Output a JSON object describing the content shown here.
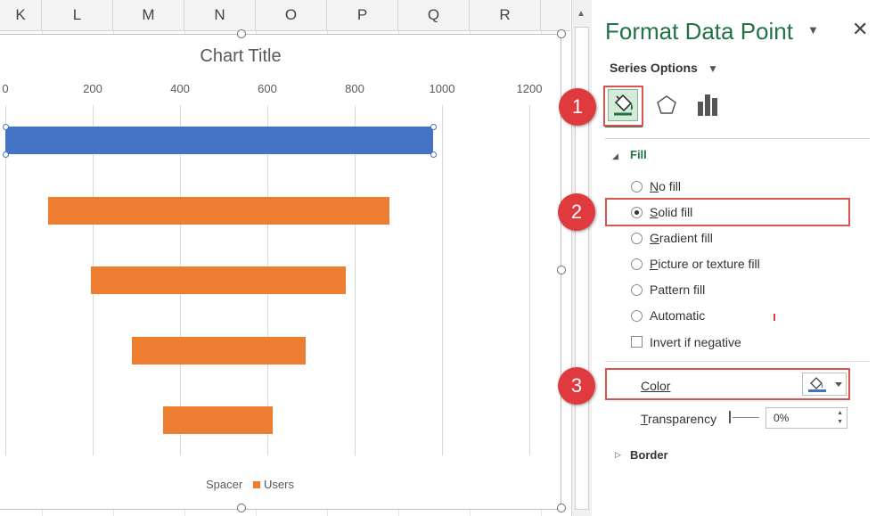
{
  "spreadsheet": {
    "columns": [
      "K",
      "L",
      "M",
      "N",
      "O",
      "P",
      "Q",
      "R"
    ]
  },
  "chart": {
    "title": "Chart Title",
    "legend": [
      "Spacer",
      "Users"
    ]
  },
  "chart_data": {
    "type": "bar",
    "orientation": "horizontal-stacked",
    "title": "Chart Title",
    "xlim": [
      0,
      1200
    ],
    "ticks": [
      "0",
      "200",
      "400",
      "600",
      "800",
      "1000",
      "1200"
    ],
    "series": [
      {
        "name": "Spacer",
        "values": [
          0,
          98,
          196,
          289,
          362
        ]
      },
      {
        "name": "Users",
        "values": [
          980,
          782,
          584,
          398,
          250
        ]
      }
    ],
    "selected_point": {
      "series": "Users",
      "index": 0,
      "color": "#4472c4"
    },
    "colors": {
      "Users": "#ed7d31",
      "selected": "#4472c4",
      "Spacer": "none"
    },
    "grid": true,
    "legend_position": "bottom"
  },
  "pane": {
    "title": "Format Data Point",
    "series_options": "Series Options",
    "tabs": [
      "fill-line-icon",
      "effects-icon",
      "series-options-icon"
    ],
    "fill_section": "Fill",
    "fill_options": [
      {
        "label": "No fill",
        "key": "N",
        "rest": "o fill",
        "selected": false
      },
      {
        "label": "Solid fill",
        "key": "S",
        "rest": "olid fill",
        "selected": true
      },
      {
        "label": "Gradient fill",
        "key": "G",
        "rest": "radient fill",
        "selected": false
      },
      {
        "label": "Picture or texture fill",
        "key": "P",
        "rest": "icture or texture fill",
        "selected": false
      },
      {
        "label": "Pattern fill",
        "key": "A",
        "rest": "Pattern fill",
        "selected": false
      },
      {
        "label": "Automatic",
        "key": "U",
        "rest": "Automatic",
        "selected": false
      }
    ],
    "invert_label": "Invert if negative",
    "color_label": "Color",
    "transparency_label": "Transparency",
    "transparency_value": "0%",
    "border_section": "Border"
  },
  "callouts": [
    "1",
    "2",
    "3"
  ],
  "accent_color": "#217346",
  "callout_color": "#e0393e"
}
